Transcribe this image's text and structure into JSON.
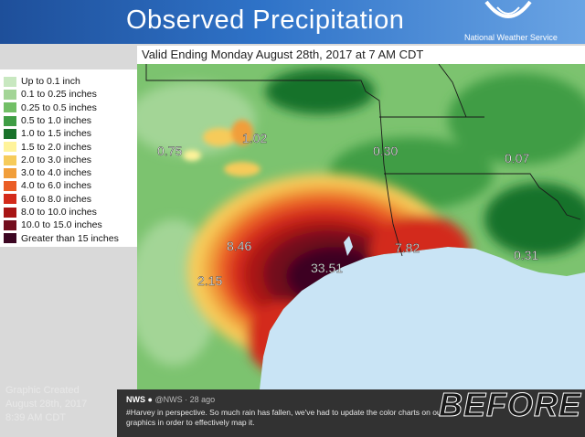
{
  "header": {
    "title": "Observed Precipitation",
    "agency": "National Weather Service",
    "valid": "Valid Ending Monday August 28th, 2017 at 7 AM CDT"
  },
  "legend": {
    "items": [
      {
        "label": "Up to 0.1 inch",
        "color": "#c8e8c0"
      },
      {
        "label": "0.1 to 0.25 inches",
        "color": "#a3d596"
      },
      {
        "label": "0.25 to 0.5 inches",
        "color": "#72bf66"
      },
      {
        "label": "0.5 to 1.0 inches",
        "color": "#3f9d44"
      },
      {
        "label": "1.0 to 1.5 inches",
        "color": "#19722a"
      },
      {
        "label": "1.5 to 2.0 inches",
        "color": "#fff39a"
      },
      {
        "label": "2.0 to 3.0 inches",
        "color": "#f6cb5a"
      },
      {
        "label": "3.0 to 4.0 inches",
        "color": "#f19e3a"
      },
      {
        "label": "4.0 to 6.0 inches",
        "color": "#ea5d25"
      },
      {
        "label": "6.0 to 8.0 inches",
        "color": "#d32a1a"
      },
      {
        "label": "8.0 to 10.0 inches",
        "color": "#a81515"
      },
      {
        "label": "10.0 to 15.0 inches",
        "color": "#730d1d"
      },
      {
        "label": "Greater than 15 inches",
        "color": "#3c0622"
      }
    ]
  },
  "map": {
    "values": [
      "0.75",
      "1.02",
      "0.30",
      "0.07",
      "8.46",
      "7.82",
      "33.51",
      "2.15",
      "0.31"
    ],
    "colors": {
      "water": "#c9e4f5",
      "land_outside": "#e8efe4"
    }
  },
  "credit": {
    "line1": "Graphic Created",
    "line2": "August 28th, 2017",
    "line3": "8:39 AM CDT"
  },
  "tweet": {
    "name": "NWS",
    "handle": "@NWS · 28 ago",
    "text": "#Harvey in perspective. So much rain has fallen, we've had to update the color charts on our graphics in order to effectively map it."
  },
  "stamp": "BEFORE"
}
